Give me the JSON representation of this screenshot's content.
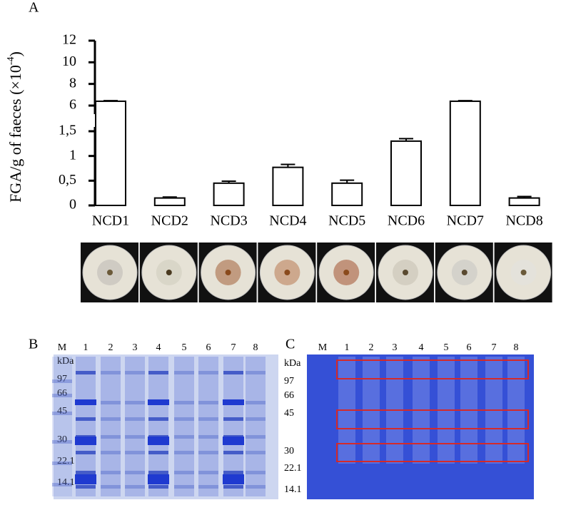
{
  "chart_data": {
    "type": "bar",
    "panel_label": "A",
    "y_label": "FGA/g of faeces (×10",
    "y_label_exponent": "-4",
    "y_label_end": ")",
    "categories": [
      "NCD1",
      "NCD2",
      "NCD3",
      "NCD4",
      "NCD5",
      "NCD6",
      "NCD7",
      "NCD8"
    ],
    "values": [
      6.4,
      0.15,
      0.45,
      0.77,
      0.45,
      1.3,
      6.4,
      0.15
    ],
    "errors": [
      0.05,
      0.02,
      0.04,
      0.06,
      0.06,
      0.05,
      0.05,
      0.03
    ],
    "color": "#ffffff",
    "ylim": [
      0,
      12
    ],
    "y_break": [
      1.5,
      6
    ],
    "yticks": [
      0,
      {
        "value": 0.5,
        "label": "0,5"
      },
      1,
      {
        "value": 1.5,
        "label": "1,5"
      },
      6,
      8,
      10,
      12
    ]
  },
  "gel_b": {
    "panel_label": "B",
    "lanes": [
      "M",
      "1",
      "2",
      "3",
      "4",
      "5",
      "6",
      "7",
      "8"
    ],
    "unit": "kDa",
    "markers": [
      "97",
      "66",
      "45",
      "30",
      "22.1",
      "14.1"
    ]
  },
  "gel_c": {
    "panel_label": "C",
    "lanes": [
      "M",
      "1",
      "2",
      "3",
      "4",
      "5",
      "6",
      "7",
      "8"
    ],
    "unit": "kDa",
    "markers": [
      "97",
      "66",
      "45",
      "30",
      "22.1",
      "14.1"
    ]
  }
}
